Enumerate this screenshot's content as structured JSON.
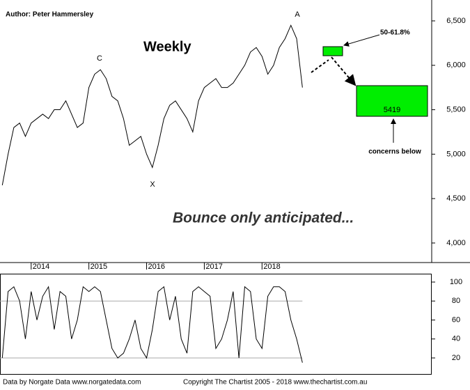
{
  "chart_data": [
    {
      "type": "line",
      "xlim": [
        2013.46,
        2020.94
      ],
      "xticks": [
        2014,
        2015,
        2016,
        2017,
        2018
      ],
      "ylim": [
        3780,
        6735
      ],
      "yticks": [
        {
          "value": 4000,
          "label": "4,000"
        },
        {
          "value": 4500,
          "label": "4,500"
        },
        {
          "value": 5000,
          "label": "5,000"
        },
        {
          "value": 5500,
          "label": "5,500"
        },
        {
          "value": 6000,
          "label": "6,000"
        },
        {
          "value": 6500,
          "label": "6,500"
        }
      ],
      "x": [
        2013.5,
        2013.6,
        2013.7,
        2013.8,
        2013.9,
        2014.0,
        2014.1,
        2014.2,
        2014.3,
        2014.4,
        2014.5,
        2014.6,
        2014.7,
        2014.8,
        2014.9,
        2015.0,
        2015.1,
        2015.2,
        2015.3,
        2015.4,
        2015.5,
        2015.6,
        2015.7,
        2015.8,
        2015.9,
        2016.0,
        2016.1,
        2016.2,
        2016.3,
        2016.4,
        2016.5,
        2016.6,
        2016.7,
        2016.8,
        2016.9,
        2017.0,
        2017.1,
        2017.2,
        2017.3,
        2017.4,
        2017.5,
        2017.6,
        2017.7,
        2017.8,
        2017.9,
        2018.0,
        2018.1,
        2018.2,
        2018.3,
        2018.4,
        2018.5,
        2018.6,
        2018.7
      ],
      "series": [
        {
          "color": "#000000",
          "values": [
            4650,
            5000,
            5300,
            5350,
            5200,
            5350,
            5400,
            5450,
            5400,
            5500,
            5500,
            5600,
            5450,
            5300,
            5350,
            5750,
            5900,
            5950,
            5850,
            5650,
            5600,
            5400,
            5100,
            5150,
            5200,
            5000,
            4850,
            5100,
            5400,
            5550,
            5600,
            5500,
            5400,
            5250,
            5600,
            5750,
            5800,
            5850,
            5750,
            5750,
            5800,
            5900,
            6000,
            6150,
            6200,
            6100,
            5900,
            6000,
            6200,
            6300,
            6450,
            6300,
            5750
          ]
        }
      ]
    },
    {
      "type": "line",
      "xlim": [
        2013.46,
        2020.94
      ],
      "ylim": [
        3.1,
        108.8
      ],
      "yticks": [
        20,
        40,
        60,
        80,
        100
      ],
      "reference_lines": [
        20,
        80
      ],
      "x": [
        2013.5,
        2013.6,
        2013.7,
        2013.8,
        2013.9,
        2014.0,
        2014.1,
        2014.2,
        2014.3,
        2014.4,
        2014.5,
        2014.6,
        2014.7,
        2014.8,
        2014.9,
        2015.0,
        2015.1,
        2015.2,
        2015.3,
        2015.4,
        2015.5,
        2015.6,
        2015.7,
        2015.8,
        2015.9,
        2016.0,
        2016.1,
        2016.2,
        2016.3,
        2016.4,
        2016.5,
        2016.6,
        2016.7,
        2016.8,
        2016.9,
        2017.0,
        2017.1,
        2017.2,
        2017.3,
        2017.4,
        2017.5,
        2017.6,
        2017.7,
        2017.8,
        2017.9,
        2018.0,
        2018.1,
        2018.2,
        2018.3,
        2018.4,
        2018.5,
        2018.6,
        2018.7
      ],
      "series": [
        {
          "color": "#000000",
          "values": [
            20,
            90,
            95,
            80,
            40,
            90,
            60,
            85,
            95,
            50,
            90,
            85,
            40,
            60,
            95,
            90,
            95,
            90,
            60,
            30,
            20,
            25,
            40,
            60,
            30,
            20,
            50,
            90,
            95,
            60,
            85,
            40,
            25,
            90,
            95,
            90,
            85,
            30,
            40,
            60,
            90,
            20,
            95,
            90,
            40,
            30,
            85,
            95,
            95,
            90,
            60,
            40,
            15
          ]
        }
      ]
    }
  ],
  "annotations": {
    "author": "Author: Peter Hammersley",
    "title": "Weekly",
    "a": "A",
    "c": "C",
    "x": "X",
    "target": "50-61.8%",
    "level": "5419",
    "concerns": "concerns below",
    "headline": "Bounce only anticipated..."
  },
  "footer": {
    "data": "Data by Norgate Data  www.norgatedata.com",
    "copyright": "Copyright The Chartist 2005 - 2018  www.thechartist.com.au"
  }
}
